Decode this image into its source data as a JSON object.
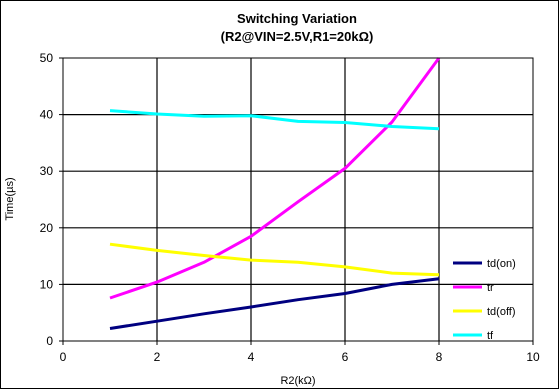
{
  "chart_data": {
    "type": "line",
    "title": "Switching Variation",
    "subtitle": "(R2@VIN=2.5V,R1=20kΩ)",
    "xlabel": "R2(kΩ)",
    "ylabel": "Time(µs)",
    "xlim": [
      0,
      10
    ],
    "ylim": [
      0,
      50
    ],
    "xticks": [
      0,
      2,
      4,
      6,
      8,
      10
    ],
    "yticks": [
      0,
      10,
      20,
      30,
      40,
      50
    ],
    "grid": true,
    "legend_position": "right",
    "series": [
      {
        "name": "td(on)",
        "color": "#000080",
        "x": [
          1,
          2,
          3,
          4,
          5,
          6,
          7,
          8
        ],
        "y": [
          2.2,
          3.5,
          4.8,
          6.0,
          7.3,
          8.4,
          10.0,
          11.0
        ]
      },
      {
        "name": "tr",
        "color": "#ff00ff",
        "x": [
          1,
          2,
          3,
          4,
          5,
          6,
          7,
          8
        ],
        "y": [
          7.6,
          10.4,
          13.9,
          18.5,
          24.6,
          30.5,
          38.7,
          50.2
        ]
      },
      {
        "name": "td(off)",
        "color": "#ffff00",
        "x": [
          1,
          2,
          3,
          4,
          5,
          6,
          7,
          8
        ],
        "y": [
          17.1,
          16.0,
          15.1,
          14.3,
          13.9,
          13.1,
          12.0,
          11.7
        ]
      },
      {
        "name": "tf",
        "color": "#00ffff",
        "x": [
          1,
          2,
          3,
          4,
          5,
          6,
          7,
          8
        ],
        "y": [
          40.7,
          40.1,
          39.7,
          39.8,
          38.8,
          38.6,
          37.9,
          37.5
        ]
      }
    ]
  }
}
